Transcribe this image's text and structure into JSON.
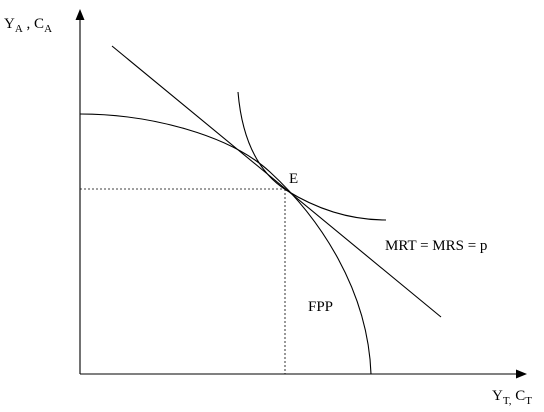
{
  "diagram": {
    "y_axis_label": {
      "y": "Y",
      "y_sub": "A",
      "sep": " , ",
      "c": "C",
      "c_sub": "A"
    },
    "x_axis_label": {
      "y": "Y",
      "y_sub": "T,",
      "c": " C",
      "c_sub": "T"
    },
    "point_label": "E",
    "tangent_label": "MRT = MRS = p",
    "frontier_label": "FPP",
    "colors": {
      "ink": "#000000",
      "background": "#ffffff"
    }
  }
}
